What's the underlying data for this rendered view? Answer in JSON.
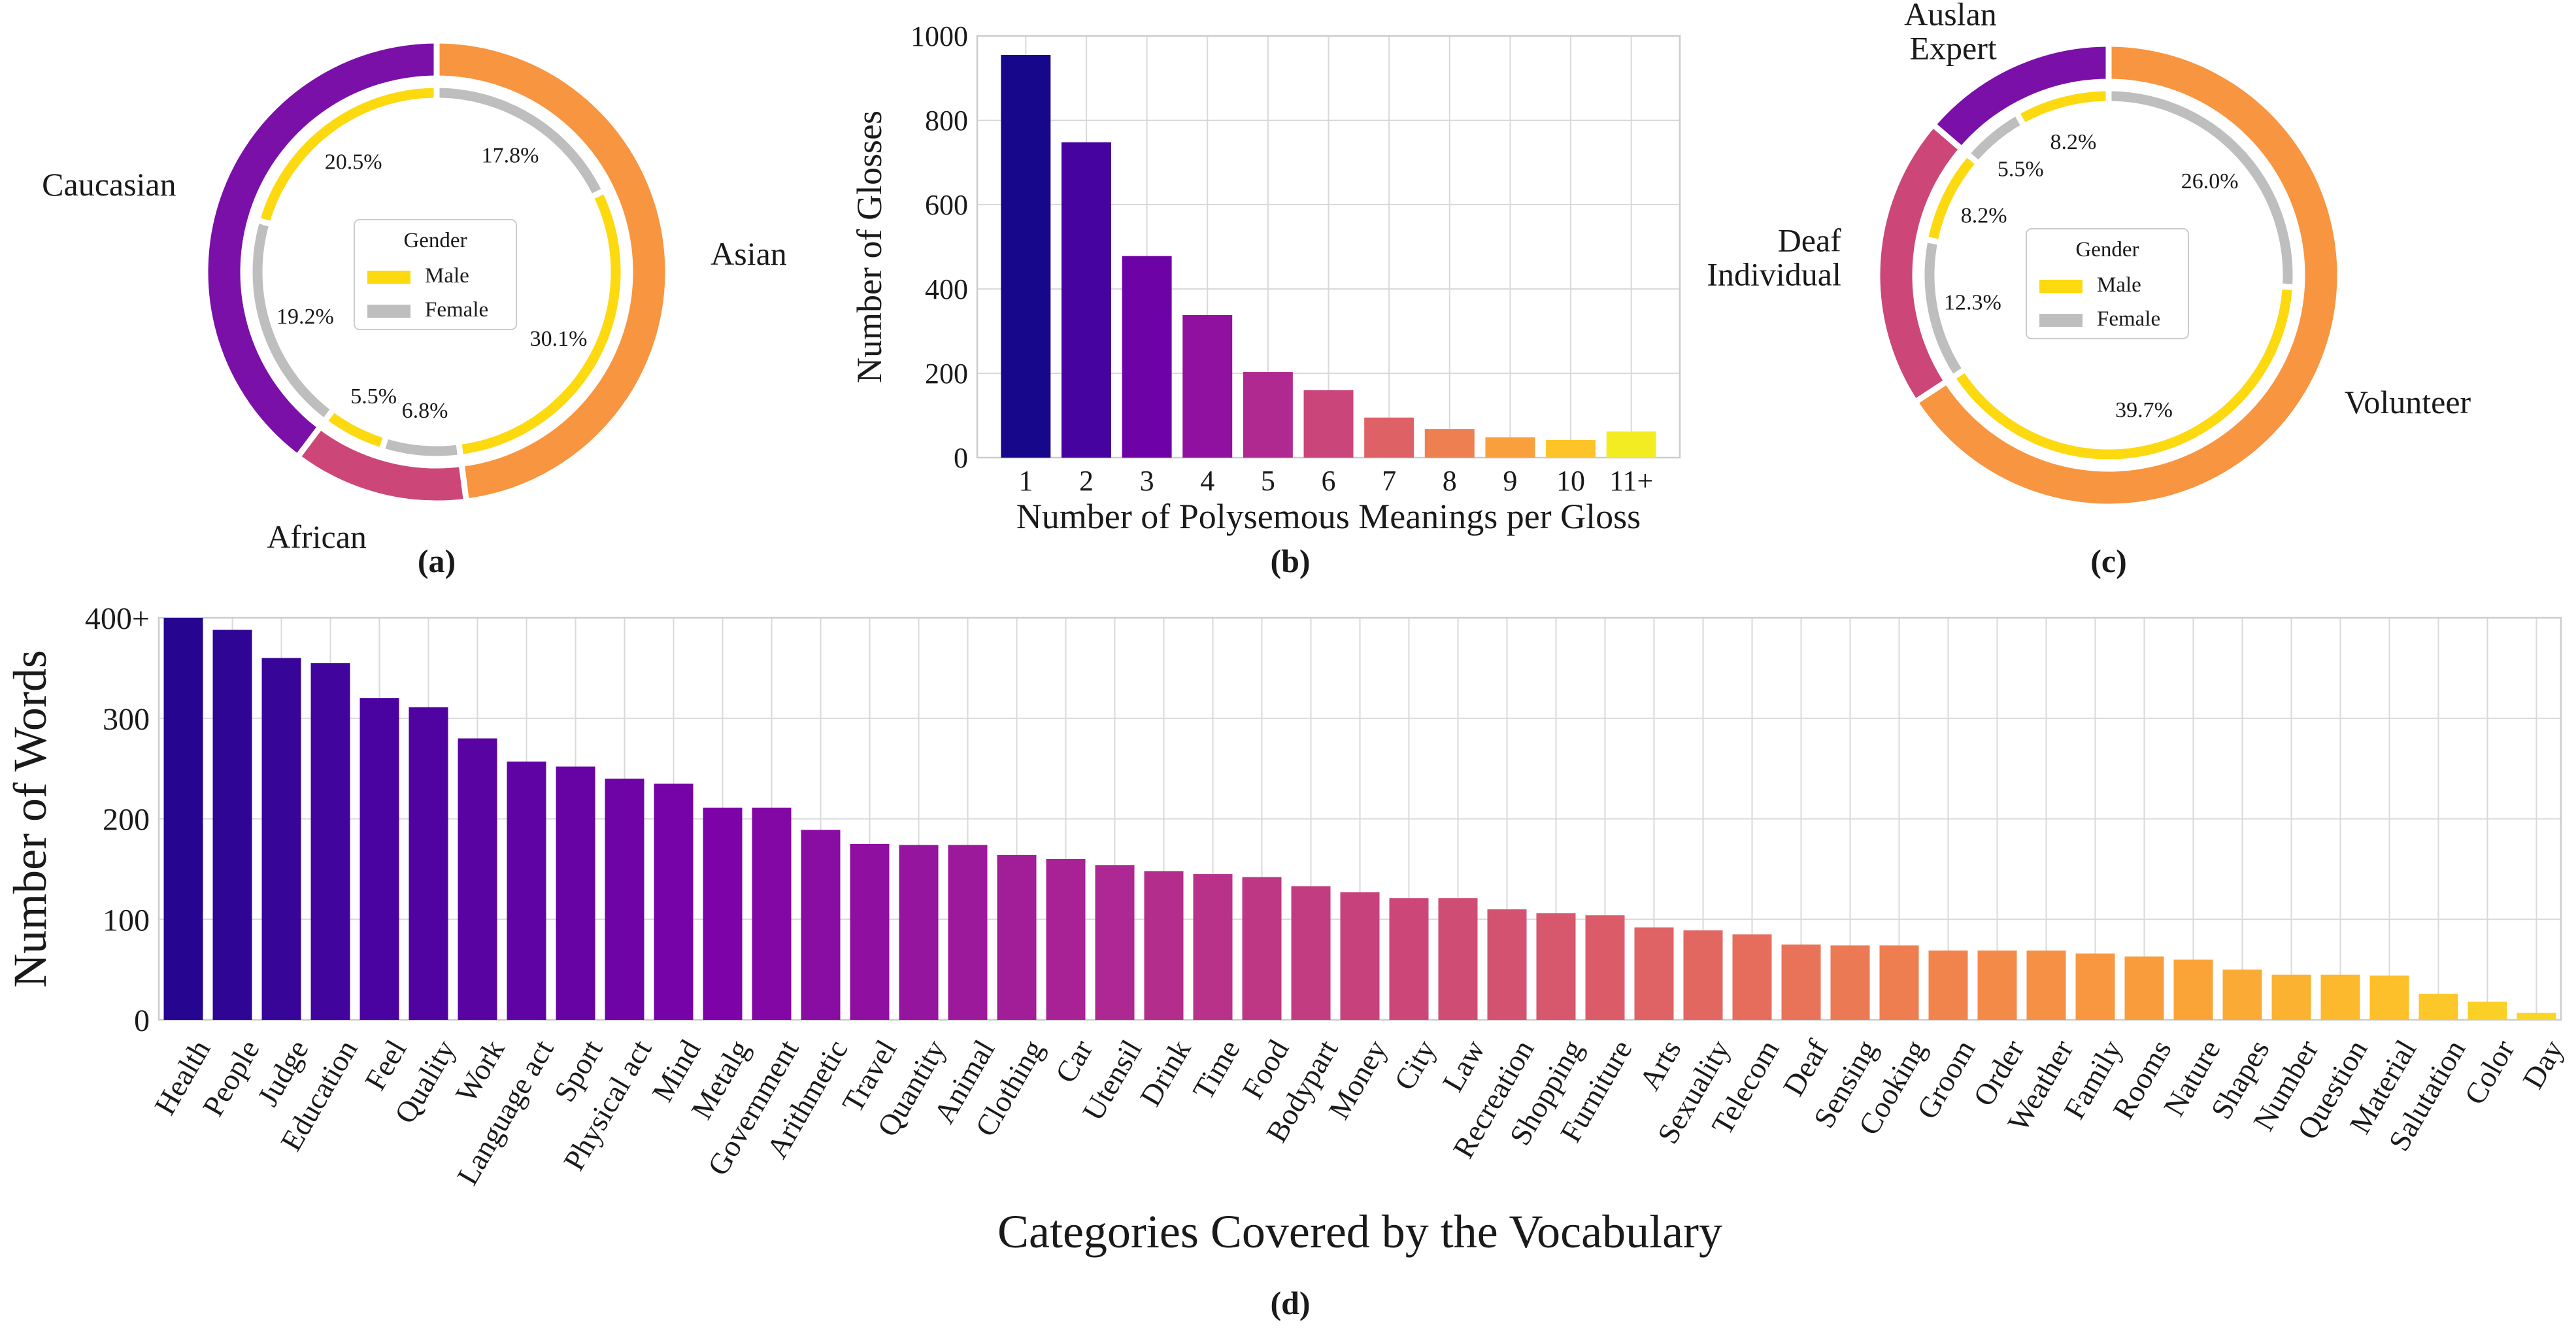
{
  "panel_labels": {
    "a": "(a)",
    "b": "(b)",
    "c": "(c)",
    "d": "(d)"
  },
  "colors": {
    "male": "#FDD90F",
    "female": "#BEBEBE",
    "caucasian": "#7A10A8",
    "asian": "#F89540",
    "african": "#CC4778",
    "auslan_expert": "#7A10A8",
    "deaf_individual": "#CC4778",
    "volunteer": "#F89540"
  },
  "chart_data": [
    {
      "id": "a",
      "type": "pie",
      "subtype": "nested-donut",
      "outer": [
        {
          "label": "Asian",
          "percent": 47.9
        },
        {
          "label": "African",
          "percent": 12.3
        },
        {
          "label": "Caucasian",
          "percent": 39.7
        }
      ],
      "inner": [
        {
          "group": "Asian",
          "gender": "Female",
          "percent": 17.8,
          "label": "17.8%"
        },
        {
          "group": "Asian",
          "gender": "Male",
          "percent": 30.1,
          "label": "30.1%"
        },
        {
          "group": "African",
          "gender": "Female",
          "percent": 6.8,
          "label": "6.8%"
        },
        {
          "group": "African",
          "gender": "Male",
          "percent": 5.5,
          "label": "5.5%"
        },
        {
          "group": "Caucasian",
          "gender": "Female",
          "percent": 19.2,
          "label": "19.2%"
        },
        {
          "group": "Caucasian",
          "gender": "Male",
          "percent": 20.5,
          "label": "20.5%"
        }
      ],
      "legend": {
        "title": "Gender",
        "entries": [
          "Male",
          "Female"
        ],
        "placement": "center"
      }
    },
    {
      "id": "b",
      "type": "bar",
      "categories": [
        "1",
        "2",
        "3",
        "4",
        "5",
        "6",
        "7",
        "8",
        "9",
        "10",
        "11+"
      ],
      "values": [
        955,
        748,
        478,
        338,
        203,
        160,
        95,
        68,
        48,
        42,
        62
      ],
      "xlabel": "Number of Polysemous Meanings per Gloss",
      "ylabel": "Number of Glosses",
      "ylim": [
        0,
        1000
      ],
      "yticks": [
        0,
        200,
        400,
        600,
        800,
        1000
      ],
      "grid": true
    },
    {
      "id": "c",
      "type": "pie",
      "subtype": "nested-donut",
      "outer": [
        {
          "label": "Volunteer",
          "percent": 65.7
        },
        {
          "label": "Deaf Individual",
          "percent": 20.5
        },
        {
          "label": "Auslan Expert",
          "percent": 13.7
        }
      ],
      "outer_label_lines": {
        "Volunteer": [
          "Volunteer"
        ],
        "Deaf Individual": [
          "Deaf",
          "Individual"
        ],
        "Auslan Expert": [
          "Auslan",
          "Expert"
        ]
      },
      "inner": [
        {
          "group": "Volunteer",
          "gender": "Female",
          "percent": 26.0,
          "label": "26.0%"
        },
        {
          "group": "Volunteer",
          "gender": "Male",
          "percent": 39.7,
          "label": "39.7%"
        },
        {
          "group": "Deaf Individual",
          "gender": "Female",
          "percent": 12.3,
          "label": "12.3%"
        },
        {
          "group": "Deaf Individual",
          "gender": "Male",
          "percent": 8.2,
          "label": "8.2%"
        },
        {
          "group": "Auslan Expert",
          "gender": "Female",
          "percent": 5.5,
          "label": "5.5%"
        },
        {
          "group": "Auslan Expert",
          "gender": "Male",
          "percent": 8.2,
          "label": "8.2%"
        }
      ],
      "legend": {
        "title": "Gender",
        "entries": [
          "Male",
          "Female"
        ],
        "placement": "center"
      }
    },
    {
      "id": "d",
      "type": "bar",
      "categories": [
        "Health",
        "People",
        "Judge",
        "Education",
        "Feel",
        "Quality",
        "Work",
        "Language act",
        "Sport",
        "Physical act",
        "Mind",
        "Metalg",
        "Government",
        "Arithmetic",
        "Travel",
        "Quantity",
        "Animal",
        "Clothing",
        "Car",
        "Utensil",
        "Drink",
        "Time",
        "Food",
        "Bodypart",
        "Money",
        "City",
        "Law",
        "Recreation",
        "Shopping",
        "Furniture",
        "Arts",
        "Sexuality",
        "Telecom",
        "Deaf",
        "Sensing",
        "Cooking",
        "Groom",
        "Order",
        "Weather",
        "Family",
        "Rooms",
        "Nature",
        "Shapes",
        "Number",
        "Question",
        "Material",
        "Salutation",
        "Color",
        "Day"
      ],
      "values": [
        400,
        388,
        360,
        355,
        320,
        311,
        280,
        257,
        252,
        240,
        235,
        211,
        211,
        189,
        175,
        174,
        174,
        164,
        160,
        154,
        148,
        145,
        142,
        133,
        127,
        121,
        121,
        110,
        106,
        104,
        92,
        89,
        85,
        75,
        74,
        74,
        69,
        69,
        69,
        66,
        63,
        60,
        50,
        45,
        45,
        44,
        26,
        18,
        7
      ],
      "xlabel": "Categories Covered by the Vocabulary",
      "ylabel": "Number of Words",
      "ylim": [
        0,
        400
      ],
      "yticks": [
        "0",
        "100",
        "200",
        "300",
        "400+"
      ],
      "grid": true
    }
  ]
}
